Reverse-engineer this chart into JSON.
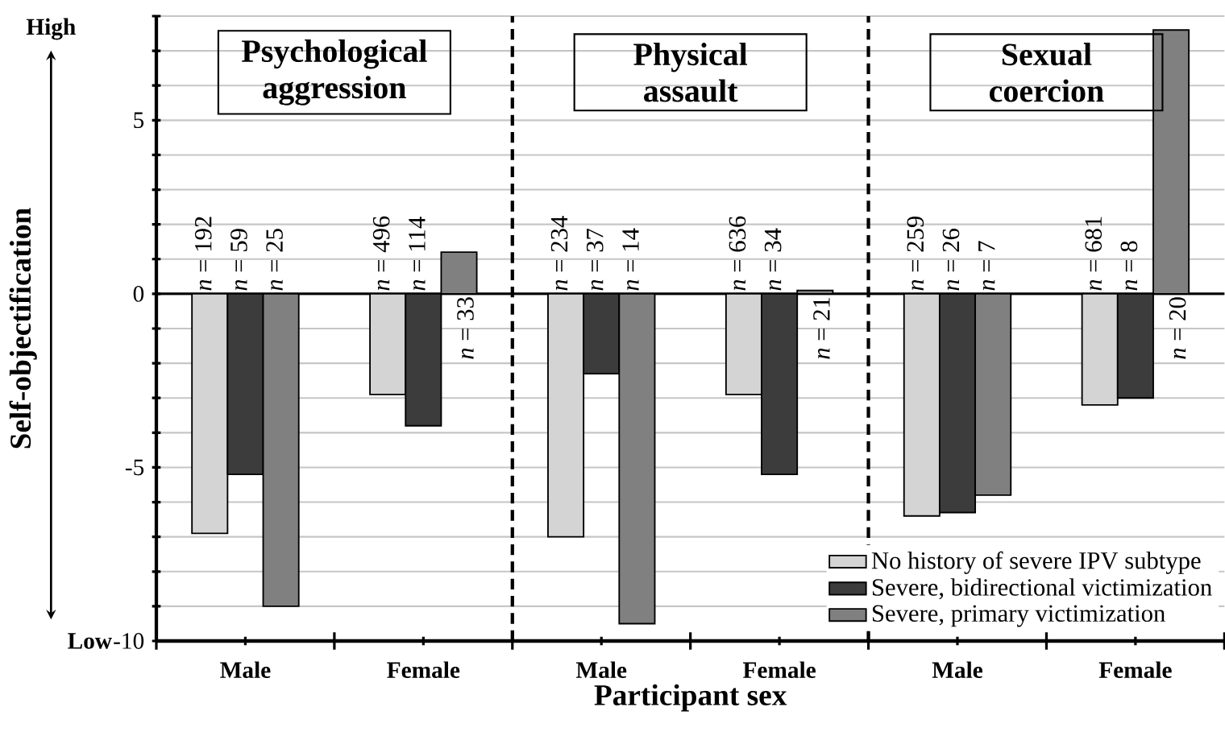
{
  "chart_data": {
    "type": "bar",
    "xlabel": "Participant sex",
    "ylabel": "Self-objectification",
    "categories": [
      "Male",
      "Female",
      "Male",
      "Female",
      "Male",
      "Female"
    ],
    "series": [
      {
        "name": "No history of severe IPV subtype",
        "color": "#d4d4d4",
        "values": [
          -6.9,
          -2.9,
          -7.0,
          -2.9,
          -6.4,
          -3.2
        ]
      },
      {
        "name": "Severe, bidirectional victimization",
        "color": "#3c3c3c",
        "values": [
          -5.2,
          -3.8,
          -2.3,
          -5.2,
          -6.3,
          -3.0
        ]
      },
      {
        "name": "Severe, primary victimization",
        "color": "#808080",
        "values": [
          -9.0,
          1.2,
          -9.5,
          0.1,
          -5.8,
          7.6
        ]
      }
    ],
    "ylim": [
      -10,
      8
    ],
    "yticks": [
      -10,
      {
        "value": -9,
        "label": null
      },
      {
        "value": -8,
        "label": null
      },
      {
        "value": -7,
        "label": null
      },
      {
        "value": -6,
        "label": null
      },
      -5,
      {
        "value": -4,
        "label": null
      },
      {
        "value": -3,
        "label": null
      },
      {
        "value": -2,
        "label": null
      },
      {
        "value": -1,
        "label": null
      },
      0,
      {
        "value": 1,
        "label": null
      },
      {
        "value": 2,
        "label": null
      },
      {
        "value": 3,
        "label": null
      },
      {
        "value": 4,
        "label": null
      },
      5,
      {
        "value": 6,
        "label": null
      },
      {
        "value": 7,
        "label": null
      },
      {
        "value": 8,
        "label": null
      }
    ],
    "grid": "y",
    "legend": "bottom right",
    "annotations": [
      "Psychological aggression",
      "Physical assault",
      "Sexual coercion",
      "High",
      "Low",
      "*n* = 192",
      "*n* = 496",
      "*n* = 234",
      "*n* = 636",
      "*n* = 259",
      "*n* = 681",
      "*n* = 59",
      "*n* = 114",
      "*n* = 37",
      "*n* = 34",
      "*n* = 26",
      "*n* = 8",
      "*n* = 25",
      "*n* = 33",
      "*n* = 14",
      "*n* = 21",
      "*n* = 7",
      "*n* = 20"
    ]
  }
}
